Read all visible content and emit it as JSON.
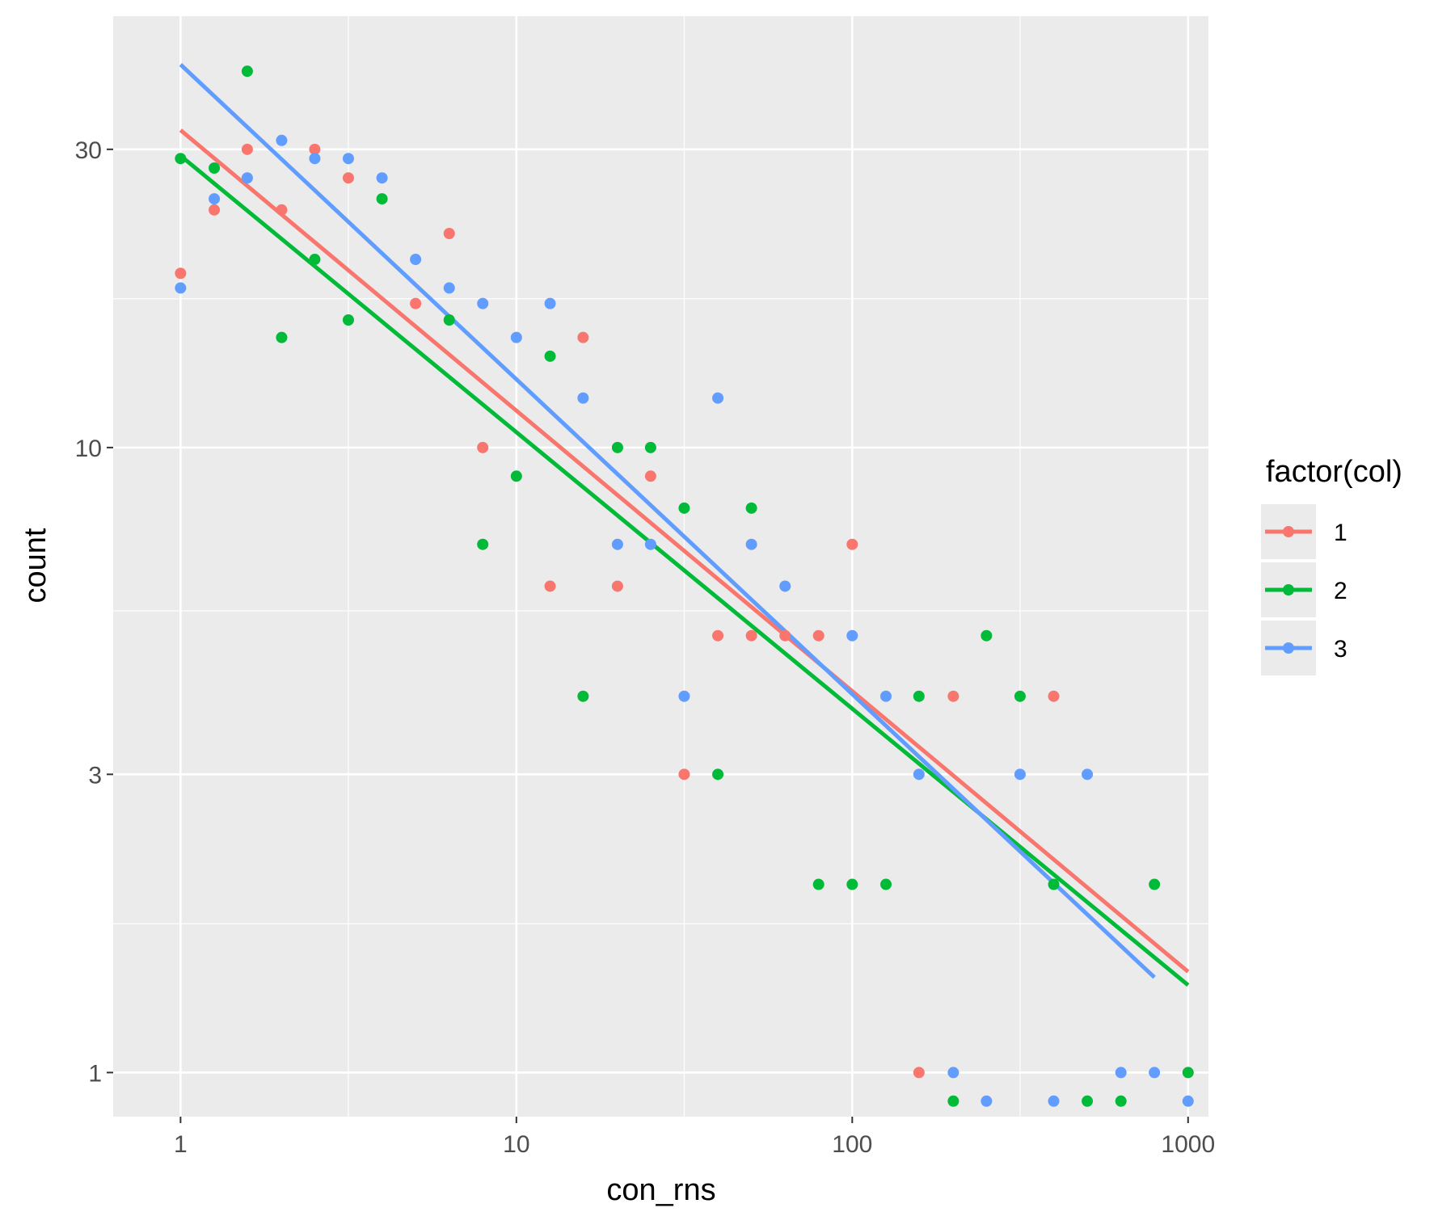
{
  "chart_data": {
    "type": "scatter",
    "title": "",
    "xlabel": "con_rns",
    "ylabel": "count",
    "x_scale": "log10",
    "y_scale": "log10",
    "xlim": [
      0.63,
      1150
    ],
    "ylim": [
      0.85,
      49
    ],
    "x_ticks": [
      {
        "value": 1,
        "label": "1"
      },
      {
        "value": 10,
        "label": "10"
      },
      {
        "value": 100,
        "label": "100"
      },
      {
        "value": 1000,
        "label": "1000"
      }
    ],
    "y_ticks": [
      {
        "value": 1,
        "label": "1"
      },
      {
        "value": 3,
        "label": "3"
      },
      {
        "value": 10,
        "label": "10"
      },
      {
        "value": 30,
        "label": "30"
      }
    ],
    "y_minor": [
      1.73,
      5.48,
      17.3
    ],
    "x_minor": [
      3.16,
      31.6,
      316
    ],
    "background": "#ebebeb",
    "grid": true,
    "legend": {
      "title": "factor(col)",
      "position": "right",
      "entries": [
        {
          "label": "1",
          "color": "#f8766d"
        },
        {
          "label": "2",
          "color": "#00ba38"
        },
        {
          "label": "3",
          "color": "#619cff"
        }
      ]
    },
    "series": [
      {
        "name": "1",
        "color": "#f8766d",
        "points": [
          [
            1,
            19
          ],
          [
            1.26,
            24
          ],
          [
            1.58,
            30
          ],
          [
            2,
            24
          ],
          [
            2.51,
            30
          ],
          [
            3.16,
            27
          ],
          [
            5.01,
            17
          ],
          [
            6.31,
            22
          ],
          [
            7.94,
            10
          ],
          [
            12.6,
            6
          ],
          [
            15.8,
            15
          ],
          [
            20,
            6
          ],
          [
            25.1,
            9
          ],
          [
            31.6,
            3
          ],
          [
            39.8,
            5
          ],
          [
            50.1,
            5
          ],
          [
            63.1,
            5
          ],
          [
            79.4,
            5
          ],
          [
            100,
            7
          ],
          [
            158,
            1
          ],
          [
            200,
            4
          ],
          [
            398,
            4
          ]
        ],
        "fit": {
          "x": [
            1,
            1000
          ],
          "y": [
            32.2,
            1.45
          ]
        }
      },
      {
        "name": "2",
        "color": "#00ba38",
        "points": [
          [
            1,
            29
          ],
          [
            1.26,
            28
          ],
          [
            1.58,
            40
          ],
          [
            2,
            15
          ],
          [
            2.51,
            20
          ],
          [
            3.16,
            16
          ],
          [
            3.98,
            25
          ],
          [
            6.31,
            16
          ],
          [
            7.94,
            7
          ],
          [
            10,
            9
          ],
          [
            12.6,
            14
          ],
          [
            15.8,
            4
          ],
          [
            20,
            10
          ],
          [
            25.1,
            10
          ],
          [
            31.6,
            8
          ],
          [
            39.8,
            3
          ],
          [
            50.1,
            8
          ],
          [
            79.4,
            2
          ],
          [
            100,
            2
          ],
          [
            126,
            2
          ],
          [
            158,
            4
          ],
          [
            200,
            0.9
          ],
          [
            251,
            5
          ],
          [
            316,
            4
          ],
          [
            398,
            2
          ],
          [
            501,
            0.9
          ],
          [
            631,
            0.9
          ],
          [
            794,
            2
          ],
          [
            1000,
            1
          ]
        ],
        "fit": {
          "x": [
            1,
            1000
          ],
          "y": [
            29.3,
            1.38
          ]
        }
      },
      {
        "name": "3",
        "color": "#619cff",
        "points": [
          [
            1,
            18
          ],
          [
            1.26,
            25
          ],
          [
            1.58,
            27
          ],
          [
            2,
            31
          ],
          [
            2.51,
            29
          ],
          [
            3.16,
            29
          ],
          [
            3.98,
            27
          ],
          [
            5.01,
            20
          ],
          [
            6.31,
            18
          ],
          [
            7.94,
            17
          ],
          [
            10,
            15
          ],
          [
            12.6,
            17
          ],
          [
            15.8,
            12
          ],
          [
            20,
            7
          ],
          [
            25.1,
            7
          ],
          [
            31.6,
            4
          ],
          [
            39.8,
            12
          ],
          [
            50.1,
            7
          ],
          [
            63.1,
            6
          ],
          [
            100,
            5
          ],
          [
            126,
            4
          ],
          [
            158,
            3
          ],
          [
            200,
            1
          ],
          [
            251,
            0.9
          ],
          [
            316,
            3
          ],
          [
            398,
            0.9
          ],
          [
            501,
            3
          ],
          [
            631,
            1
          ],
          [
            794,
            1
          ],
          [
            1000,
            0.9
          ]
        ],
        "fit": {
          "x": [
            1,
            794
          ],
          "y": [
            41.0,
            1.42
          ]
        }
      }
    ]
  }
}
